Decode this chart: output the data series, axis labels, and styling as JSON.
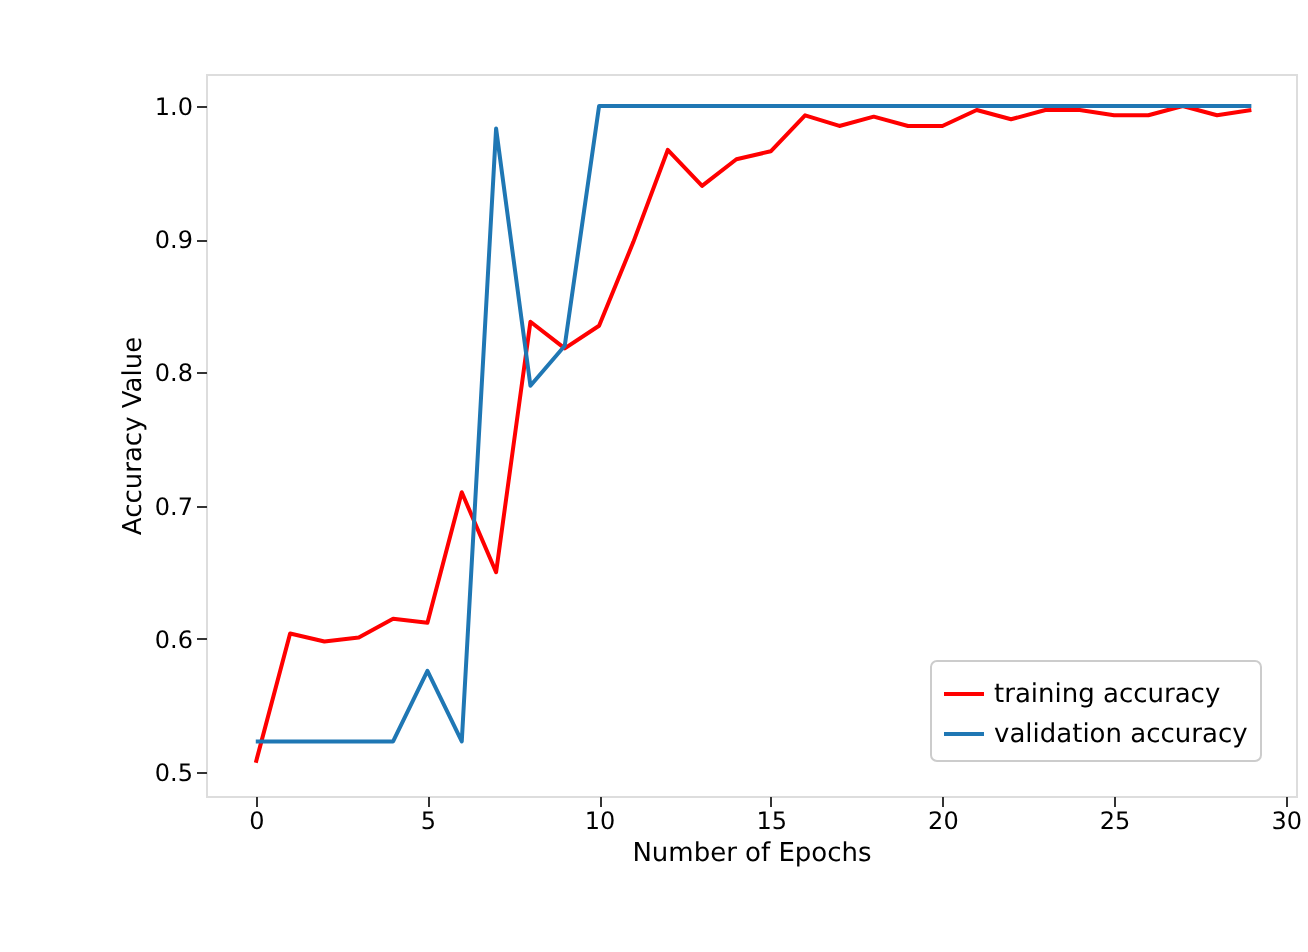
{
  "chart_data": {
    "type": "line",
    "xlabel": "Number of Epochs",
    "ylabel": "Accuracy Value",
    "x": [
      0,
      1,
      2,
      3,
      4,
      5,
      6,
      7,
      8,
      9,
      10,
      11,
      12,
      13,
      14,
      15,
      16,
      17,
      18,
      19,
      20,
      21,
      22,
      23,
      24,
      25,
      26,
      27,
      28,
      29
    ],
    "series": [
      {
        "name": "training accuracy",
        "color": "#ff0000",
        "values": [
          0.507,
          0.604,
          0.598,
          0.601,
          0.615,
          0.612,
          0.71,
          0.65,
          0.838,
          0.818,
          0.835,
          0.898,
          0.967,
          0.94,
          0.96,
          0.966,
          0.993,
          0.985,
          0.992,
          0.985,
          0.985,
          0.997,
          0.99,
          0.997,
          0.997,
          0.993,
          0.993,
          1.0,
          0.993,
          0.997
        ]
      },
      {
        "name": "validation accuracy",
        "color": "#1f77b4",
        "values": [
          0.523,
          0.523,
          0.523,
          0.523,
          0.523,
          0.576,
          0.523,
          0.983,
          0.79,
          0.82,
          1.0,
          1.0,
          1.0,
          1.0,
          1.0,
          1.0,
          1.0,
          1.0,
          1.0,
          1.0,
          1.0,
          1.0,
          1.0,
          1.0,
          1.0,
          1.0,
          1.0,
          1.0,
          1.0,
          1.0
        ]
      }
    ],
    "xlim": [
      -1.45,
      30.3
    ],
    "xticks": [
      0,
      5,
      10,
      15,
      20,
      25,
      30
    ],
    "ylim": [
      0.482,
      1.024
    ],
    "yticks": [
      0.5,
      0.6,
      0.7,
      0.8,
      0.9,
      {
        "value": 1,
        "label": "1.0"
      }
    ],
    "grid": false,
    "legend": "bottom right",
    "line_style": "solid",
    "marker": "none"
  }
}
